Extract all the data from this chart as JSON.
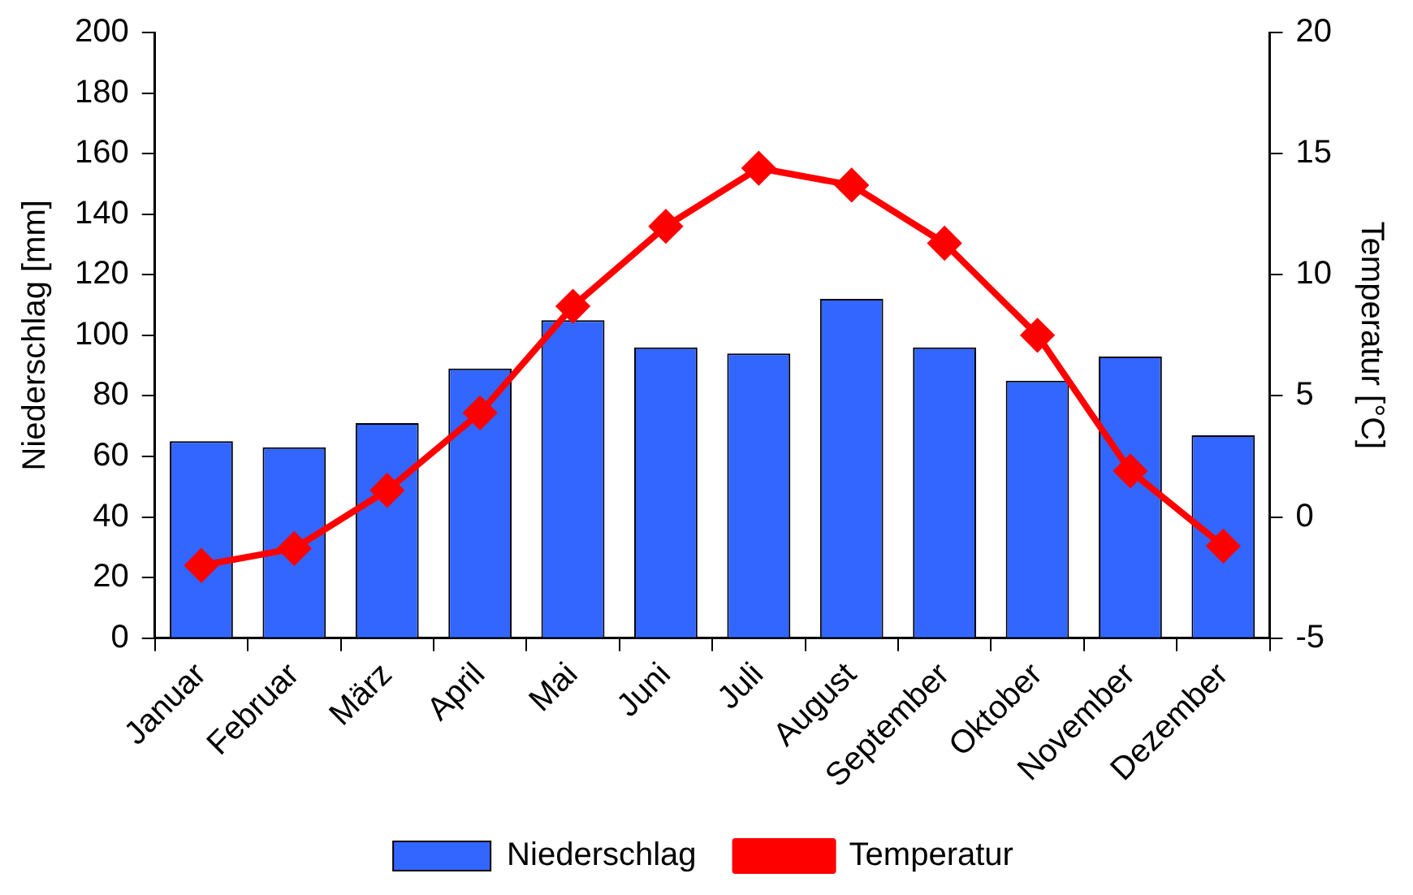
{
  "chart_data": {
    "type": "bar",
    "categories": [
      "Januar",
      "Februar",
      "März",
      "April",
      "Mai",
      "Juni",
      "Juli",
      "August",
      "September",
      "Oktober",
      "November",
      "Dezember"
    ],
    "series": [
      {
        "name": "Niederschlag",
        "color": "#3366ff",
        "values": [
          65,
          63,
          71,
          89,
          105,
          96,
          94,
          112,
          96,
          85,
          93,
          67
        ]
      },
      {
        "name": "Temperatur",
        "type": "line",
        "axis": "y2",
        "color": "#ff0000",
        "marker": "diamond",
        "values": [
          -2.0,
          -1.3,
          1.1,
          4.3,
          8.7,
          12.0,
          14.4,
          13.7,
          11.3,
          7.5,
          1.9,
          -1.2
        ]
      }
    ],
    "ylabel": "Niederschlag [mm]",
    "y2label": "Temperatur [°C]",
    "ylim": [
      0,
      200
    ],
    "yticks": [
      0,
      20,
      40,
      60,
      80,
      100,
      120,
      140,
      160,
      180,
      200
    ],
    "y2lim": [
      -5,
      20
    ],
    "y2ticks": [
      -5,
      0,
      5,
      10,
      15,
      20
    ],
    "grid": false,
    "legend": "bottom"
  }
}
